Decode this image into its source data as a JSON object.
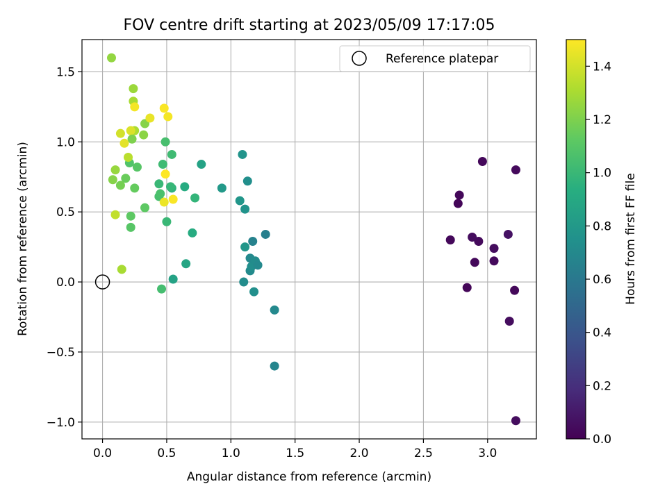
{
  "chart_data": {
    "type": "scatter",
    "title": "FOV centre drift starting at 2023/05/09 17:17:05",
    "xlabel": "Angular distance from reference (arcmin)",
    "ylabel": "Rotation from reference (arcmin)",
    "xlim": [
      -0.16,
      3.38
    ],
    "ylim": [
      -1.12,
      1.73
    ],
    "xticks": [
      0.0,
      0.5,
      1.0,
      1.5,
      2.0,
      2.5,
      3.0
    ],
    "xtick_labels": [
      "0.0",
      "0.5",
      "1.0",
      "1.5",
      "2.0",
      "2.5",
      "3.0"
    ],
    "yticks": [
      -1.0,
      -0.5,
      0.0,
      0.5,
      1.0,
      1.5
    ],
    "ytick_labels": [
      "−1.0",
      "−0.5",
      "0.0",
      "0.5",
      "1.0",
      "1.5"
    ],
    "grid": true,
    "legend": {
      "placement": "top-right",
      "entries": [
        "Reference platepar"
      ]
    },
    "reference_point": {
      "x": 0.0,
      "y": 0.0
    },
    "colorbar": {
      "label": "Hours from first FF file",
      "colormap": "viridis",
      "range": [
        0.0,
        1.5
      ],
      "ticks": [
        0.0,
        0.2,
        0.4,
        0.6,
        0.8,
        1.0,
        1.2,
        1.4
      ],
      "tick_labels": [
        "0.0",
        "0.2",
        "0.4",
        "0.6",
        "0.8",
        "1.0",
        "1.2",
        "1.4"
      ]
    },
    "points": [
      {
        "x": 3.22,
        "y": -0.99,
        "c": 0.05
      },
      {
        "x": 3.17,
        "y": -0.28,
        "c": 0.05
      },
      {
        "x": 3.21,
        "y": -0.06,
        "c": 0.03
      },
      {
        "x": 2.84,
        "y": -0.04,
        "c": 0.02
      },
      {
        "x": 2.9,
        "y": 0.14,
        "c": 0.03
      },
      {
        "x": 3.05,
        "y": 0.15,
        "c": 0.04
      },
      {
        "x": 3.05,
        "y": 0.24,
        "c": 0.05
      },
      {
        "x": 2.71,
        "y": 0.3,
        "c": 0.03
      },
      {
        "x": 2.93,
        "y": 0.29,
        "c": 0.04
      },
      {
        "x": 2.88,
        "y": 0.32,
        "c": 0.05
      },
      {
        "x": 3.16,
        "y": 0.34,
        "c": 0.07
      },
      {
        "x": 2.77,
        "y": 0.56,
        "c": 0.02
      },
      {
        "x": 2.78,
        "y": 0.62,
        "c": 0.03
      },
      {
        "x": 2.96,
        "y": 0.86,
        "c": 0.03
      },
      {
        "x": 3.22,
        "y": 0.8,
        "c": 0.04
      },
      {
        "x": 1.34,
        "y": -0.6,
        "c": 0.68
      },
      {
        "x": 1.34,
        "y": -0.2,
        "c": 0.7
      },
      {
        "x": 1.18,
        "y": -0.07,
        "c": 0.74
      },
      {
        "x": 1.1,
        "y": 0.0,
        "c": 0.72
      },
      {
        "x": 1.15,
        "y": 0.08,
        "c": 0.71
      },
      {
        "x": 1.16,
        "y": 0.11,
        "c": 0.73
      },
      {
        "x": 1.15,
        "y": 0.17,
        "c": 0.7
      },
      {
        "x": 1.19,
        "y": 0.15,
        "c": 0.72
      },
      {
        "x": 1.21,
        "y": 0.12,
        "c": 0.7
      },
      {
        "x": 1.17,
        "y": 0.29,
        "c": 0.66
      },
      {
        "x": 1.27,
        "y": 0.34,
        "c": 0.64
      },
      {
        "x": 1.11,
        "y": 0.25,
        "c": 0.78
      },
      {
        "x": 1.11,
        "y": 0.52,
        "c": 0.76
      },
      {
        "x": 1.07,
        "y": 0.58,
        "c": 0.78
      },
      {
        "x": 1.13,
        "y": 0.72,
        "c": 0.74
      },
      {
        "x": 1.09,
        "y": 0.91,
        "c": 0.77
      },
      {
        "x": 0.93,
        "y": 0.67,
        "c": 0.8
      },
      {
        "x": 0.77,
        "y": 0.84,
        "c": 0.86
      },
      {
        "x": 0.65,
        "y": 0.13,
        "c": 0.88
      },
      {
        "x": 0.55,
        "y": 0.02,
        "c": 0.86
      },
      {
        "x": 0.7,
        "y": 0.35,
        "c": 0.92
      },
      {
        "x": 0.64,
        "y": 0.68,
        "c": 0.92
      },
      {
        "x": 0.72,
        "y": 0.6,
        "c": 0.98
      },
      {
        "x": 0.54,
        "y": 0.67,
        "c": 0.96
      },
      {
        "x": 0.53,
        "y": 0.68,
        "c": 0.99
      },
      {
        "x": 0.5,
        "y": 0.43,
        "c": 1.0
      },
      {
        "x": 0.46,
        "y": -0.05,
        "c": 1.04
      },
      {
        "x": 0.44,
        "y": 0.61,
        "c": 1.05
      },
      {
        "x": 0.45,
        "y": 0.63,
        "c": 1.06
      },
      {
        "x": 0.44,
        "y": 0.7,
        "c": 1.0
      },
      {
        "x": 0.47,
        "y": 0.84,
        "c": 1.02
      },
      {
        "x": 0.54,
        "y": 0.91,
        "c": 1.02
      },
      {
        "x": 0.49,
        "y": 1.0,
        "c": 1.05
      },
      {
        "x": 0.33,
        "y": 0.53,
        "c": 1.12
      },
      {
        "x": 0.27,
        "y": 0.82,
        "c": 1.1
      },
      {
        "x": 0.25,
        "y": 0.67,
        "c": 1.14
      },
      {
        "x": 0.21,
        "y": 0.85,
        "c": 1.08
      },
      {
        "x": 0.22,
        "y": 0.47,
        "c": 1.12
      },
      {
        "x": 0.22,
        "y": 0.39,
        "c": 1.1
      },
      {
        "x": 0.18,
        "y": 0.74,
        "c": 1.15
      },
      {
        "x": 0.14,
        "y": 0.69,
        "c": 1.18
      },
      {
        "x": 0.08,
        "y": 0.73,
        "c": 1.22
      },
      {
        "x": 0.1,
        "y": 0.8,
        "c": 1.26
      },
      {
        "x": 0.1,
        "y": 0.48,
        "c": 1.36
      },
      {
        "x": 0.15,
        "y": 0.09,
        "c": 1.3
      },
      {
        "x": 0.07,
        "y": 1.6,
        "c": 1.25
      },
      {
        "x": 0.24,
        "y": 1.38,
        "c": 1.27
      },
      {
        "x": 0.24,
        "y": 1.29,
        "c": 1.3
      },
      {
        "x": 0.25,
        "y": 1.25,
        "c": 1.48
      },
      {
        "x": 0.33,
        "y": 1.13,
        "c": 1.22
      },
      {
        "x": 0.32,
        "y": 1.05,
        "c": 1.23
      },
      {
        "x": 0.25,
        "y": 1.08,
        "c": 1.31
      },
      {
        "x": 0.22,
        "y": 1.08,
        "c": 1.42
      },
      {
        "x": 0.23,
        "y": 1.02,
        "c": 1.2
      },
      {
        "x": 0.14,
        "y": 1.06,
        "c": 1.4
      },
      {
        "x": 0.17,
        "y": 0.99,
        "c": 1.44
      },
      {
        "x": 0.2,
        "y": 0.89,
        "c": 1.34
      },
      {
        "x": 0.37,
        "y": 1.17,
        "c": 1.45
      },
      {
        "x": 0.48,
        "y": 1.24,
        "c": 1.49
      },
      {
        "x": 0.51,
        "y": 1.18,
        "c": 1.48
      },
      {
        "x": 0.49,
        "y": 0.77,
        "c": 1.5
      },
      {
        "x": 0.55,
        "y": 0.59,
        "c": 1.49
      },
      {
        "x": 0.48,
        "y": 0.57,
        "c": 1.46
      }
    ]
  }
}
